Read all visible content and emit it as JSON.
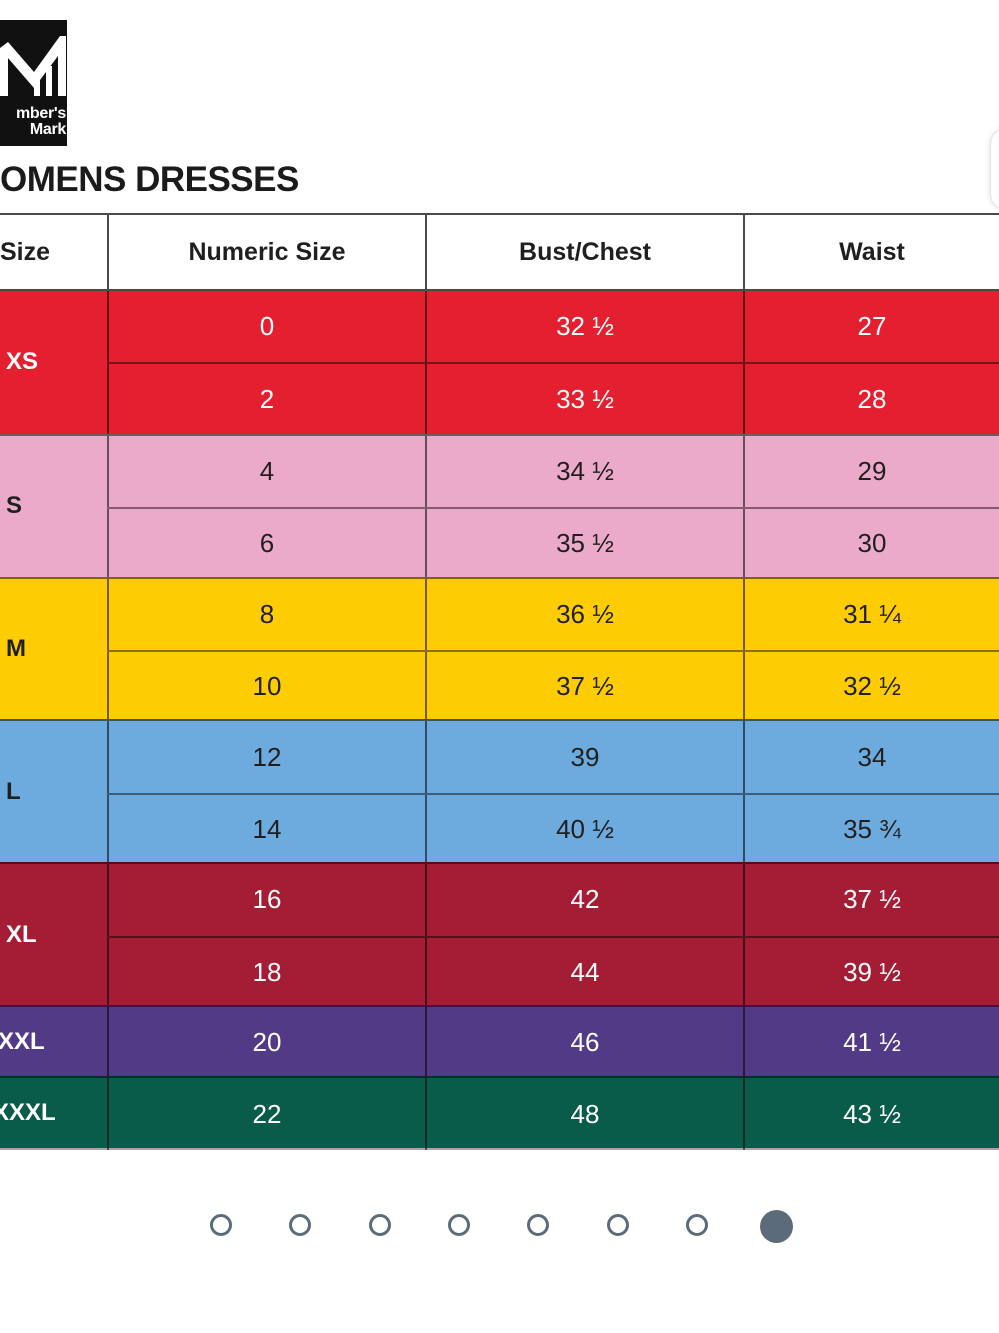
{
  "brand": {
    "logo_text_line1": "mber's",
    "logo_text_line2": "Mark"
  },
  "page_title": "OMENS DRESSES",
  "table": {
    "headers": [
      "Size",
      "Numeric Size",
      "Bust/Chest",
      "Waist"
    ],
    "groups": [
      {
        "size": "XS",
        "color": "#e41f2f",
        "text_color": "#ffffff",
        "label_color": "#ffffff",
        "rows": [
          [
            "0",
            "32 ½",
            "27"
          ],
          [
            "2",
            "33 ½",
            "28"
          ]
        ]
      },
      {
        "size": "S",
        "color": "#ecaacb",
        "text_color": "#1f1f1f",
        "label_color": "#1f1f1f",
        "rows": [
          [
            "4",
            "34 ½",
            "29"
          ],
          [
            "6",
            "35 ½",
            "30"
          ]
        ]
      },
      {
        "size": "M",
        "color": "#fdcc02",
        "text_color": "#1f1f1f",
        "label_color": "#1f1f1f",
        "rows": [
          [
            "8",
            "36 ½",
            "31 ¼"
          ],
          [
            "10",
            "37 ½",
            "32 ½"
          ]
        ]
      },
      {
        "size": "L",
        "color": "#6daade",
        "text_color": "#1f1f1f",
        "label_color": "#1f1f1f",
        "rows": [
          [
            "12",
            "39",
            "34"
          ],
          [
            "14",
            "40 ½",
            "35 ¾"
          ]
        ]
      },
      {
        "size": "XL",
        "color": "#a51d34",
        "text_color": "#ffffff",
        "label_color": "#ffffff",
        "rows": [
          [
            "16",
            "42",
            "37 ½"
          ],
          [
            "18",
            "44",
            "39 ½"
          ]
        ]
      },
      {
        "size": "XXL",
        "color": "#523a86",
        "text_color": "#ffffff",
        "label_color": "#ffffff",
        "rows": [
          [
            "20",
            "46",
            "41 ½"
          ]
        ]
      },
      {
        "size": "XXXL",
        "color": "#095b4a",
        "text_color": "#ffffff",
        "label_color": "#ffffff",
        "rows": [
          [
            "22",
            "48",
            "43 ½"
          ]
        ]
      }
    ]
  },
  "carousel": {
    "total_dots": 8,
    "active_index": 7,
    "color": "#5b6b7a"
  }
}
